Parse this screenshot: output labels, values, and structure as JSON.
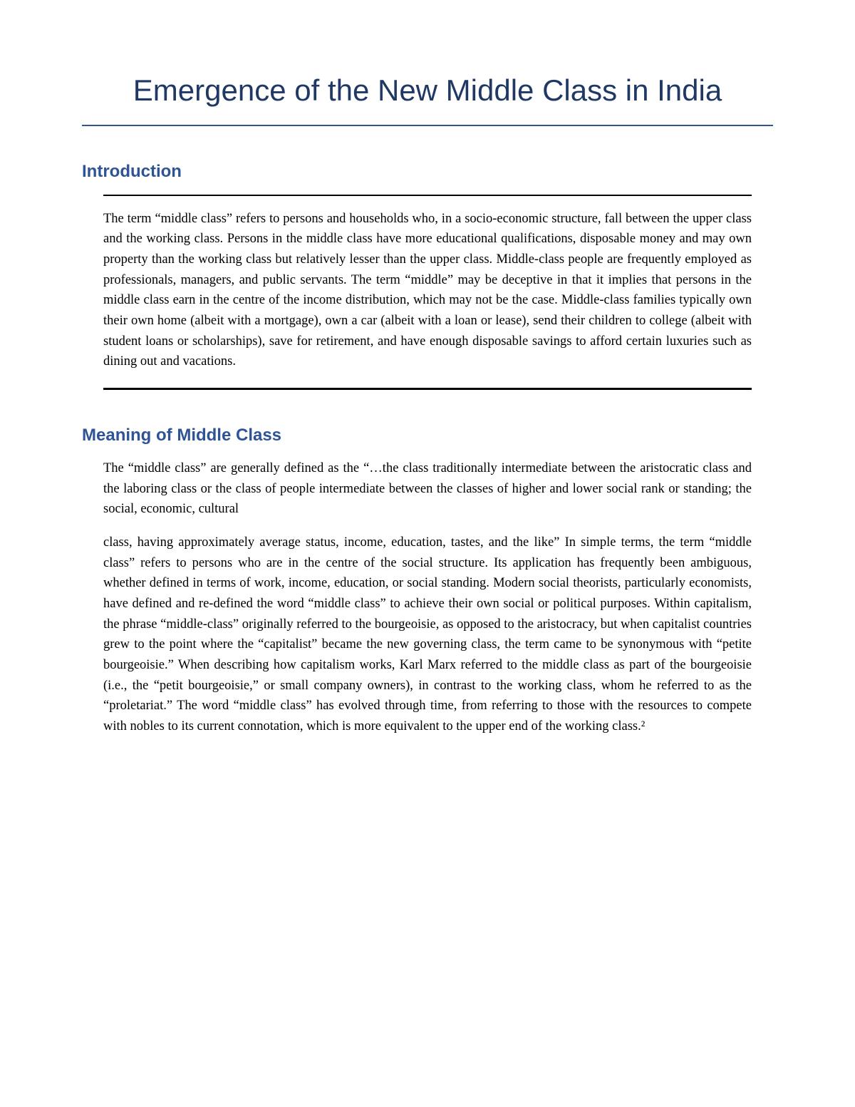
{
  "document": {
    "title": "Emergence of the New Middle Class in India",
    "title_color": "#1f3864",
    "title_fontsize": 42,
    "title_border_color": "#2e5496",
    "sections": [
      {
        "heading": "Introduction",
        "heading_color": "#2e5496",
        "heading_fontsize": 24,
        "has_border": true,
        "border_top_color": "#000000",
        "border_bottom_color": "#000000",
        "paragraphs": [
          "The term “middle class” refers to persons and households who, in a socio-economic structure, fall between the upper class and the working class. Persons in the middle class have more educational qualifications, disposable money and may own property than the working class but relatively lesser than the upper class. Middle-class people are frequently employed as professionals, managers, and public servants. The term “middle” may be deceptive in that it implies that persons in the middle class earn in the centre of the income distribution, which may not be the case. Middle-class families typically own their own home (albeit with a mortgage), own a car (albeit with a loan or lease), send their children to college (albeit with student loans or scholarships), save for retirement, and have enough disposable savings to afford certain luxuries such as dining out and vacations."
        ]
      },
      {
        "heading": "Meaning of Middle Class",
        "heading_color": "#2e5496",
        "heading_fontsize": 24,
        "has_border": false,
        "paragraphs": [
          "The “middle class” are generally defined as the “…the class traditionally intermediate between the aristocratic class and the laboring class or the class of people intermediate between the classes of higher and lower social rank or standing; the social, economic, cultural",
          "class, having approximately average status, income, education, tastes, and the like” In simple terms, the term “middle class” refers to persons who are in the centre of the social structure. Its application has frequently been ambiguous, whether defined in terms of work, income, education, or social standing. Modern social theorists, particularly economists, have defined and re-defined the word “middle class” to achieve their own social or political purposes. Within capitalism, the phrase “middle-class” originally referred to the bourgeoisie, as opposed to the aristocracy, but when capitalist countries grew to the point where the “capitalist” became the new governing class, the term came to be synonymous with “petite bourgeoisie.” When describing how capitalism works, Karl Marx referred to the middle class as part of the bourgeoisie (i.e., the “petit bourgeoisie,” or small company owners), in contrast to the working class, whom he referred to as the “proletariat.” The word “middle class” has evolved through time, from referring to those with the resources to compete with nobles to its current connotation, which is more equivalent to the upper end of the working class.²"
        ]
      }
    ],
    "body_text_color": "#000000",
    "body_fontsize": 18.5,
    "background_color": "#ffffff"
  }
}
